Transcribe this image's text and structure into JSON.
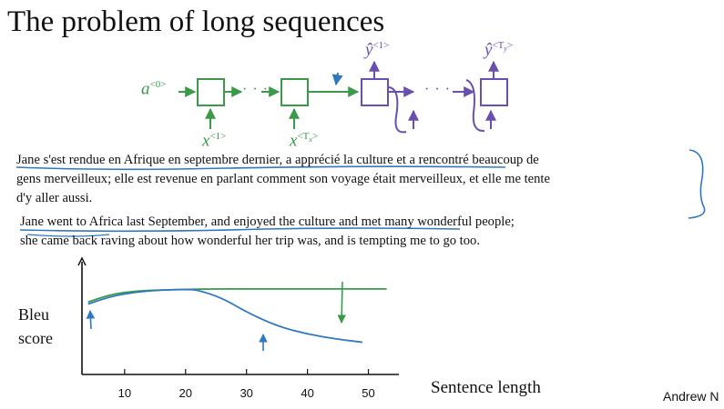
{
  "slide": {
    "title": "The problem of long sequences",
    "credit": "Andrew N"
  },
  "diagram": {
    "encoder_input_label": "a",
    "encoder_input_sup": "<0>",
    "encoder_x_first": "x",
    "encoder_x_first_sup": "<1>",
    "encoder_x_last": "x",
    "encoder_x_last_sup": "<T",
    "encoder_x_last_sub": "x",
    "decoder_y_first": "ŷ",
    "decoder_y_first_sup": "<1>",
    "decoder_y_last": "ŷ",
    "decoder_y_last_sup": "<T",
    "decoder_y_last_sub": "y",
    "ellipsis": "· · ·",
    "encoder_color": "#3a9a4a",
    "decoder_color": "#6a4fb0"
  },
  "text": {
    "french_line1": "Jane s'est rendue en Afrique en septembre dernier, a apprécié la culture et a rencontré beaucoup de",
    "french_line2": "gens merveilleux; elle est revenue en parlant comment son voyage était merveilleux, et elle me tente",
    "french_line3": "d'y aller aussi.",
    "english_line1": "Jane went to Africa last September, and enjoyed the culture and met many wonderful people;",
    "english_line2": "she came back raving about how wonderful her trip was, and is tempting me to go too."
  },
  "chart_data": {
    "type": "line",
    "ylabel_line1": "Bleu",
    "ylabel_line2": "score",
    "xlabel": "Sentence length",
    "x_ticks": [
      10,
      20,
      30,
      40,
      50
    ],
    "series": [
      {
        "color": "#3a9a4a",
        "x": [
          4,
          8,
          12,
          16,
          20,
          24,
          30,
          40,
          50,
          53
        ],
        "y": [
          0.72,
          0.8,
          0.83,
          0.84,
          0.845,
          0.85,
          0.85,
          0.85,
          0.85,
          0.85
        ]
      },
      {
        "color": "#2f78c0",
        "x": [
          4,
          8,
          12,
          16,
          20,
          22,
          26,
          30,
          35,
          40,
          45,
          49
        ],
        "y": [
          0.7,
          0.78,
          0.82,
          0.84,
          0.845,
          0.84,
          0.76,
          0.62,
          0.48,
          0.4,
          0.35,
          0.32
        ]
      }
    ],
    "xlim": [
      3,
      55
    ],
    "ylim": [
      0,
      1.12
    ]
  }
}
